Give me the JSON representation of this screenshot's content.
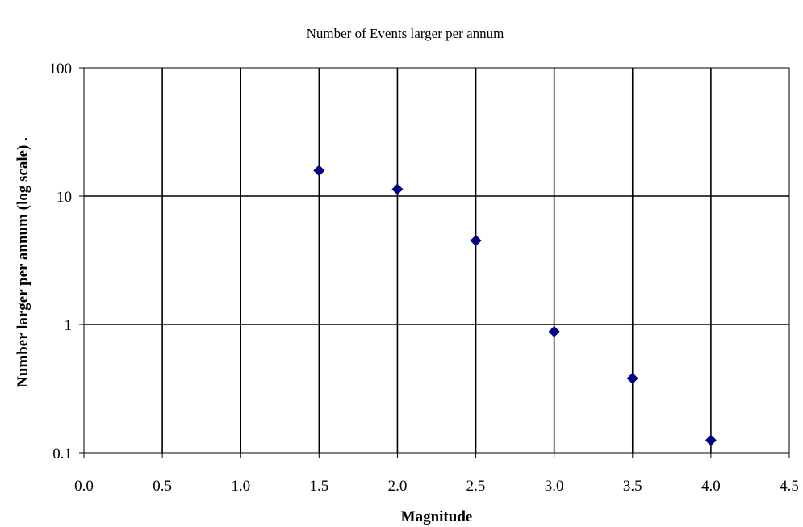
{
  "chart_data": {
    "type": "scatter",
    "title": "Number of Events larger per annum",
    "xlabel": "Magnitude",
    "ylabel": "Number larger per annum (log scale)  .",
    "xlim": [
      0.0,
      4.5
    ],
    "ylim": [
      0.1,
      100
    ],
    "yscale": "log",
    "grid": true,
    "x_ticks": [
      "0.0",
      "0.5",
      "1.0",
      "1.5",
      "2.0",
      "2.5",
      "3.0",
      "3.5",
      "4.0",
      "4.5"
    ],
    "y_ticks": [
      "100",
      "10",
      "1",
      "0.1"
    ],
    "series": [
      {
        "marker": "diamond",
        "color": "#000080",
        "points": [
          {
            "x": 1.5,
            "y": 15.8
          },
          {
            "x": 2.0,
            "y": 11.3
          },
          {
            "x": 2.5,
            "y": 4.5
          },
          {
            "x": 3.0,
            "y": 0.88
          },
          {
            "x": 3.5,
            "y": 0.38
          },
          {
            "x": 4.0,
            "y": 0.125
          }
        ]
      }
    ]
  }
}
